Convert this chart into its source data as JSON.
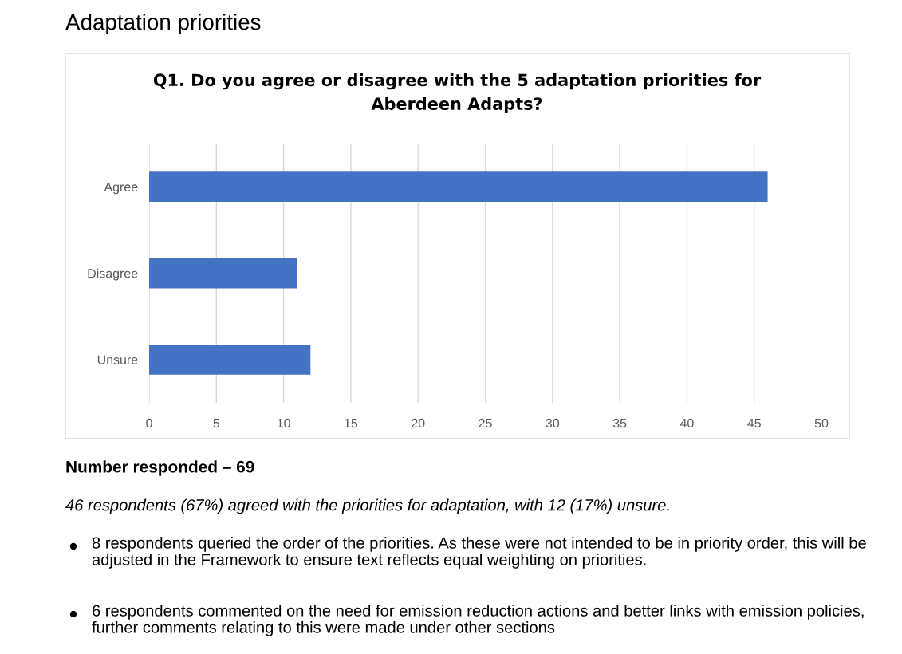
{
  "chart_data": {
    "type": "bar",
    "orientation": "horizontal",
    "title": "Q1. Do you agree or disagree with the 5 adaptation priorities for\nAberdeen Adapts?",
    "categories": [
      "Agree",
      "Disagree",
      "Unsure"
    ],
    "values": [
      46,
      11,
      12
    ],
    "color": "#4472c4",
    "xlim": [
      0,
      50
    ],
    "xticks": [
      0,
      5,
      10,
      15,
      20,
      25,
      30,
      35,
      40,
      45,
      50
    ],
    "grid": "x",
    "annotations": [
      "Adaptation priorities",
      "Number responded – 69",
      "46 respondents (67%) agreed with the priorities for adaptation, with 12 (17%) unsure.",
      "8 respondents queried the order of the priorities. As these were not intended to be in priority order, this will be adjusted in the Framework to ensure text reflects equal weighting on priorities.",
      "6 respondents commented on the need for emission reduction actions and better links with emission policies, further comments relating to this were made under other sections"
    ]
  }
}
